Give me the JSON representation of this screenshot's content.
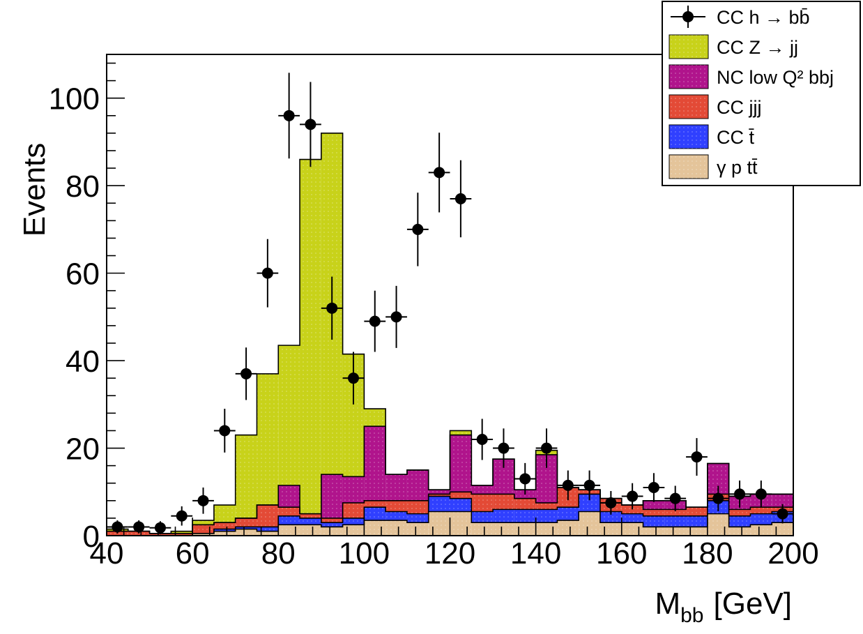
{
  "chart_data": {
    "type": "bar",
    "stacked": true,
    "style": "histogram-step",
    "xlabel": "M",
    "xlabel_sub": "bb",
    "xlabel_unit": "[GeV]",
    "ylabel": "Events",
    "xlim": [
      40,
      200
    ],
    "ylim": [
      0,
      110
    ],
    "xticks": [
      40,
      60,
      80,
      100,
      120,
      140,
      160,
      180,
      200
    ],
    "yticks": [
      0,
      20,
      40,
      60,
      80,
      100
    ],
    "bin_edges": [
      40,
      45,
      50,
      55,
      60,
      65,
      70,
      75,
      80,
      85,
      90,
      95,
      100,
      105,
      110,
      115,
      120,
      125,
      130,
      135,
      140,
      145,
      150,
      155,
      160,
      165,
      170,
      175,
      180,
      185,
      190,
      195,
      200
    ],
    "grid": false,
    "legend_position": "top-right",
    "series": [
      {
        "key": "gpt",
        "name": "γ p tt̄",
        "color": "#e4c49a",
        "values": [
          0,
          0,
          0,
          0,
          0.5,
          1,
          1.5,
          1,
          2.5,
          2.5,
          2,
          2.5,
          3.5,
          3.5,
          3,
          5.5,
          5.5,
          3,
          3,
          3,
          3,
          3.5,
          5.5,
          3,
          3,
          2,
          2,
          2,
          5,
          2,
          2.5,
          3
        ]
      },
      {
        "key": "cct",
        "name": "CC t̄",
        "color": "#3040ff",
        "values": [
          0,
          0,
          0,
          0,
          0,
          0.5,
          0.5,
          1,
          2,
          1.5,
          1,
          1.5,
          3,
          2,
          2,
          3.5,
          3,
          2.5,
          3,
          3,
          3,
          3,
          4,
          2.5,
          2,
          2.5,
          2.5,
          2.5,
          3,
          2.5,
          2.5,
          2.5
        ]
      },
      {
        "key": "ccjjj",
        "name": "CC jjj",
        "color": "#e34a36",
        "values": [
          1,
          1,
          0.5,
          0.5,
          2,
          1.5,
          2,
          5,
          2,
          1,
          1,
          3.5,
          1.5,
          2.5,
          3,
          0.5,
          1.5,
          4,
          3.5,
          2.5,
          1.5,
          4.5,
          1,
          3,
          2,
          1.5,
          1.5,
          2,
          1.5,
          1.5,
          1.5,
          1
        ]
      },
      {
        "key": "nc",
        "name": "NC low Q² bbj",
        "color": "#b0148c",
        "values": [
          0,
          0,
          0,
          0,
          0,
          0,
          0,
          0,
          5,
          0,
          10,
          6,
          17,
          6,
          7,
          1,
          13,
          2,
          8,
          2,
          11,
          0,
          0,
          0,
          0,
          2,
          2,
          0,
          7,
          3,
          3,
          3
        ]
      },
      {
        "key": "ccz",
        "name": "CC Z → jj",
        "color": "#c8d21a",
        "values": [
          0.5,
          0,
          0,
          0.5,
          1,
          4,
          19,
          30,
          32,
          81,
          78,
          28,
          4,
          0,
          0,
          0,
          1,
          0,
          0,
          0,
          1,
          0,
          0,
          0,
          0,
          0,
          0,
          0,
          0,
          0,
          0,
          0
        ]
      }
    ],
    "signal": {
      "name": "CC h → bb̄",
      "x": [
        42.5,
        47.5,
        52.5,
        57.5,
        62.5,
        67.5,
        72.5,
        77.5,
        82.5,
        87.5,
        92.5,
        97.5,
        102.5,
        107.5,
        112.5,
        117.5,
        122.5,
        127.5,
        132.5,
        137.5,
        142.5,
        147.5,
        152.5,
        157.5,
        162.5,
        167.5,
        172.5,
        177.5,
        182.5,
        187.5,
        192.5,
        197.5
      ],
      "y": [
        2,
        2,
        1.8,
        4.5,
        8,
        24,
        37,
        60,
        96,
        94,
        52,
        36,
        49,
        50,
        70,
        83,
        77,
        22,
        20,
        13,
        20,
        11.5,
        11.5,
        7.5,
        9,
        11,
        8.5,
        18,
        8.5,
        9.5,
        9.5,
        5
      ],
      "yerr": [
        1.5,
        1.5,
        1.5,
        2.2,
        3,
        5,
        6,
        7.8,
        9.8,
        9.7,
        7.2,
        6,
        7,
        7.1,
        8.4,
        9.1,
        8.8,
        4.7,
        4.5,
        3.6,
        4.5,
        3.4,
        3.4,
        2.7,
        3,
        3.3,
        2.9,
        4.3,
        2.9,
        3.1,
        3.1,
        2.2
      ]
    }
  }
}
